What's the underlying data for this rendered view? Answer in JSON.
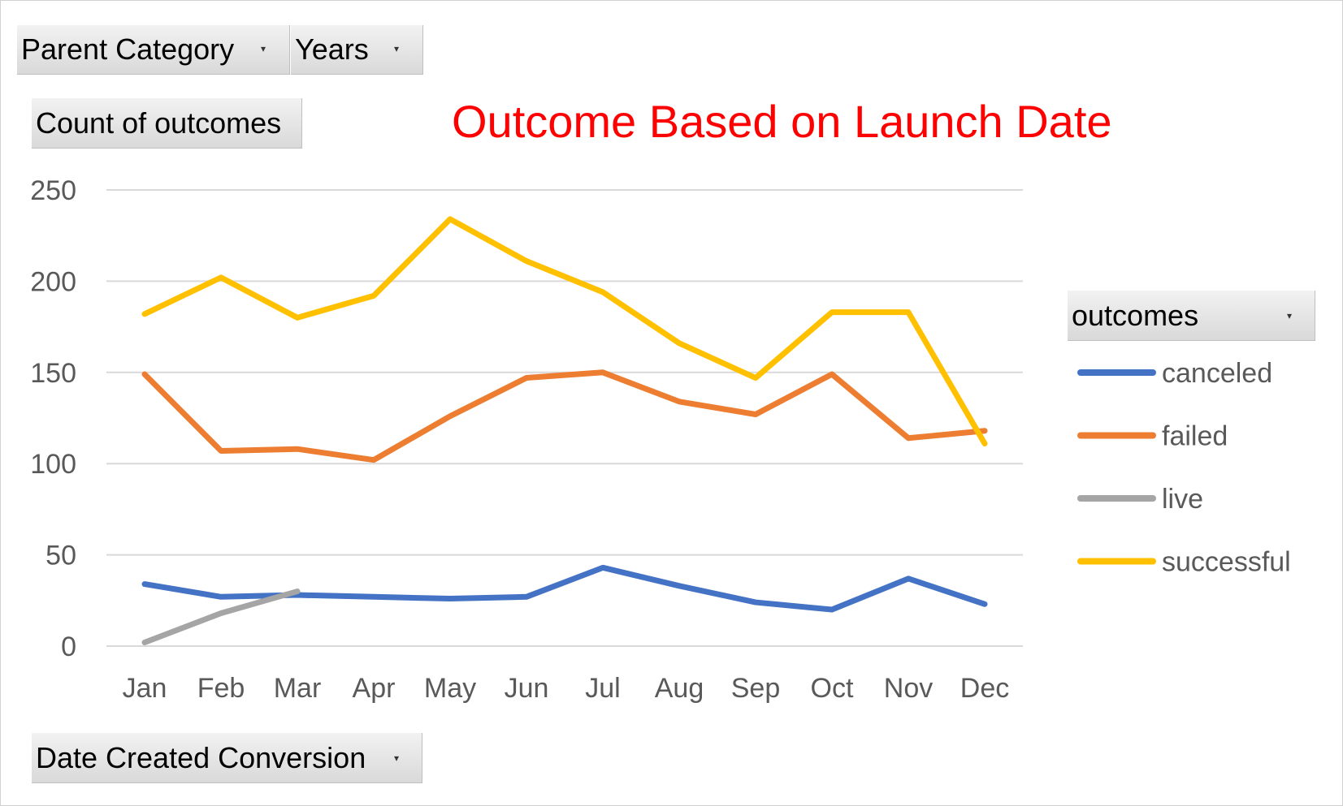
{
  "filters": {
    "parent_category": "Parent Category",
    "years": "Years",
    "value_field": "Count of outcomes",
    "axis_field": "Date Created Conversion",
    "legend_field": "outcomes"
  },
  "colors": {
    "title": "#ff0000",
    "canceled": "#4472c4",
    "failed": "#ed7d31",
    "live": "#a5a5a5",
    "successful": "#ffc000",
    "grid": "#d9d9d9",
    "axis_text": "#595959"
  },
  "chart_data": {
    "type": "line",
    "title": "Outcome Based on Launch Date",
    "xlabel": "",
    "ylabel": "",
    "categories": [
      "Jan",
      "Feb",
      "Mar",
      "Apr",
      "May",
      "Jun",
      "Jul",
      "Aug",
      "Sep",
      "Oct",
      "Nov",
      "Dec"
    ],
    "ylim": [
      0,
      250
    ],
    "yticks": [
      0,
      50,
      100,
      150,
      200,
      250
    ],
    "grid": true,
    "legend_position": "right",
    "series": [
      {
        "name": "canceled",
        "values": [
          34,
          27,
          28,
          27,
          26,
          27,
          43,
          33,
          24,
          20,
          37,
          23
        ]
      },
      {
        "name": "failed",
        "values": [
          149,
          107,
          108,
          102,
          126,
          147,
          150,
          134,
          127,
          149,
          114,
          118
        ]
      },
      {
        "name": "live",
        "values": [
          2,
          18,
          30,
          null,
          null,
          null,
          null,
          null,
          null,
          null,
          null,
          null
        ]
      },
      {
        "name": "successful",
        "values": [
          182,
          202,
          180,
          192,
          234,
          211,
          194,
          166,
          147,
          183,
          183,
          111
        ]
      }
    ]
  }
}
